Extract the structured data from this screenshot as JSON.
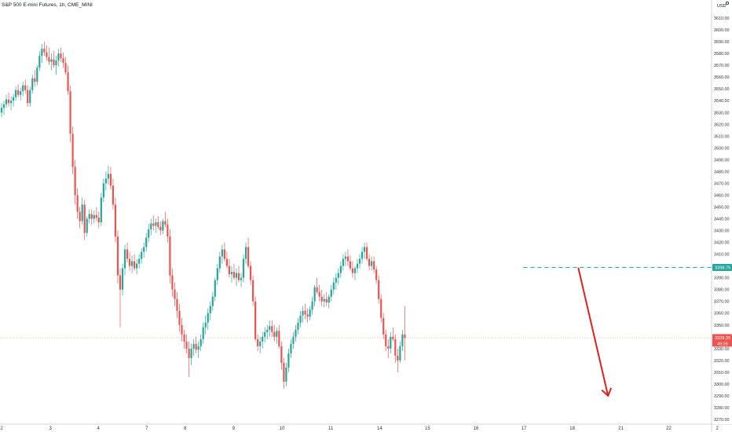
{
  "header": {
    "symbol": "S&P 500 E-mini Futures, 1h, CME_MINI",
    "currency": "USD"
  },
  "colors": {
    "up": "#26a69a",
    "down": "#ef5350",
    "level": "#26a69a",
    "arrow": "#e0201e",
    "current": "#ef5350",
    "text": "#131722",
    "axis_text": "#333333",
    "border": "#d1d4dc"
  },
  "icons": {
    "header_icon": "gear-icon"
  },
  "chart_data": {
    "type": "candlestick",
    "title": "S&P 500 E-mini Futures, 1h, CME_MINI",
    "ylim": [
      3266,
      3622
    ],
    "y_ticks": [
      3270,
      3280,
      3290,
      3300,
      3310,
      3320,
      3330,
      3340,
      3350,
      3360,
      3370,
      3380,
      3390,
      3400,
      3410,
      3420,
      3430,
      3440,
      3450,
      3460,
      3470,
      3480,
      3490,
      3500,
      3510,
      3520,
      3530,
      3540,
      3550,
      3560,
      3570,
      3580,
      3590,
      3600,
      3610
    ],
    "y_tick_labels": [
      "3270.00",
      "3280.00",
      "3290.00",
      "3300.00",
      "3310.00",
      "3320.00",
      "3330.00",
      "3340.00",
      "3350.00",
      "3360.00",
      "3370.00",
      "3380.00",
      "3390.00",
      "3400.00",
      "3410.00",
      "3420.00",
      "3430.00",
      "3440.00",
      "3450.00",
      "3460.00",
      "3470.00",
      "3480.00",
      "3490.00",
      "3500.00",
      "3510.00",
      "3520.00",
      "3530.00",
      "3540.00",
      "3550.00",
      "3560.00",
      "3570.00",
      "3580.00",
      "3590.00",
      "3600.00",
      "3610.00"
    ],
    "x_ticks": [
      "2",
      "3",
      "4",
      "7",
      "8",
      "9",
      "10",
      "11",
      "14",
      "15",
      "16",
      "17",
      "18",
      "21",
      "22",
      "2"
    ],
    "x_tick_bars": [
      0,
      20.6,
      40.8,
      61.2,
      77.4,
      97.8,
      118.2,
      138.8,
      159.4,
      179.6,
      200,
      220.2,
      240.6,
      261.1,
      281.3,
      301.7
    ],
    "level": {
      "value": 3398.75,
      "label": "3398.75",
      "start_bar": 220
    },
    "current": {
      "value": 3339.25,
      "label": "3339.25",
      "countdown": "49:26"
    },
    "projection": {
      "from": {
        "bar": 243.2,
        "price": 3398
      },
      "to": {
        "bar": 255.7,
        "price": 3290
      }
    },
    "candles": [
      [
        3530,
        3538,
        3526,
        3534
      ],
      [
        3534,
        3540,
        3528,
        3537
      ],
      [
        3537,
        3545,
        3534,
        3541
      ],
      [
        3541,
        3547,
        3535,
        3538
      ],
      [
        3538,
        3544,
        3532,
        3540
      ],
      [
        3540,
        3546,
        3535,
        3543
      ],
      [
        3543,
        3552,
        3540,
        3549
      ],
      [
        3549,
        3554,
        3543,
        3545
      ],
      [
        3545,
        3551,
        3540,
        3548
      ],
      [
        3548,
        3556,
        3544,
        3553
      ],
      [
        3553,
        3558,
        3546,
        3549
      ],
      [
        3549,
        3553,
        3535,
        3538
      ],
      [
        3538,
        3552,
        3535,
        3549
      ],
      [
        3549,
        3562,
        3546,
        3559
      ],
      [
        3559,
        3566,
        3552,
        3556
      ],
      [
        3556,
        3570,
        3553,
        3568
      ],
      [
        3568,
        3582,
        3565,
        3578
      ],
      [
        3578,
        3588,
        3572,
        3584
      ],
      [
        3584,
        3590,
        3578,
        3581
      ],
      [
        3581,
        3587,
        3574,
        3577
      ],
      [
        3577,
        3585,
        3570,
        3573
      ],
      [
        3573,
        3580,
        3566,
        3575
      ],
      [
        3575,
        3582,
        3568,
        3570
      ],
      [
        3570,
        3578,
        3562,
        3574
      ],
      [
        3574,
        3584,
        3569,
        3580
      ],
      [
        3580,
        3585,
        3573,
        3576
      ],
      [
        3576,
        3581,
        3568,
        3572
      ],
      [
        3572,
        3577,
        3562,
        3564
      ],
      [
        3564,
        3570,
        3545,
        3548
      ],
      [
        3548,
        3553,
        3505,
        3512
      ],
      [
        3512,
        3518,
        3478,
        3484
      ],
      [
        3484,
        3490,
        3452,
        3460
      ],
      [
        3460,
        3466,
        3440,
        3446
      ],
      [
        3446,
        3450,
        3432,
        3438
      ],
      [
        3438,
        3458,
        3435,
        3452
      ],
      [
        3452,
        3456,
        3422,
        3428
      ],
      [
        3428,
        3442,
        3425,
        3440
      ],
      [
        3440,
        3448,
        3436,
        3444
      ],
      [
        3444,
        3448,
        3435,
        3440
      ],
      [
        3440,
        3447,
        3436,
        3443
      ],
      [
        3443,
        3450,
        3438,
        3441
      ],
      [
        3441,
        3446,
        3432,
        3437
      ],
      [
        3437,
        3462,
        3434,
        3458
      ],
      [
        3458,
        3474,
        3454,
        3470
      ],
      [
        3470,
        3480,
        3464,
        3474
      ],
      [
        3474,
        3485,
        3469,
        3478
      ],
      [
        3478,
        3484,
        3465,
        3468
      ],
      [
        3468,
        3474,
        3448,
        3452
      ],
      [
        3452,
        3458,
        3420,
        3425
      ],
      [
        3425,
        3430,
        3385,
        3392
      ],
      [
        3392,
        3398,
        3348,
        3380
      ],
      [
        3380,
        3402,
        3375,
        3398
      ],
      [
        3398,
        3418,
        3392,
        3414
      ],
      [
        3414,
        3420,
        3403,
        3406
      ],
      [
        3406,
        3412,
        3396,
        3400
      ],
      [
        3400,
        3409,
        3394,
        3404
      ],
      [
        3404,
        3410,
        3396,
        3398
      ],
      [
        3398,
        3406,
        3393,
        3402
      ],
      [
        3402,
        3410,
        3398,
        3406
      ],
      [
        3406,
        3415,
        3402,
        3412
      ],
      [
        3412,
        3420,
        3407,
        3416
      ],
      [
        3416,
        3428,
        3412,
        3424
      ],
      [
        3424,
        3436,
        3420,
        3431
      ],
      [
        3431,
        3440,
        3426,
        3436
      ],
      [
        3436,
        3443,
        3430,
        3434
      ],
      [
        3434,
        3440,
        3428,
        3437
      ],
      [
        3437,
        3442,
        3431,
        3433
      ],
      [
        3433,
        3438,
        3426,
        3430
      ],
      [
        3430,
        3440,
        3427,
        3438
      ],
      [
        3438,
        3446,
        3433,
        3435
      ],
      [
        3435,
        3440,
        3420,
        3425
      ],
      [
        3425,
        3431,
        3385,
        3392
      ],
      [
        3392,
        3398,
        3374,
        3380
      ],
      [
        3380,
        3386,
        3366,
        3372
      ],
      [
        3372,
        3378,
        3356,
        3362
      ],
      [
        3362,
        3368,
        3344,
        3350
      ],
      [
        3350,
        3356,
        3336,
        3342
      ],
      [
        3342,
        3346,
        3330,
        3336
      ],
      [
        3336,
        3342,
        3326,
        3330
      ],
      [
        3330,
        3336,
        3306,
        3322
      ],
      [
        3322,
        3334,
        3316,
        3330
      ],
      [
        3330,
        3338,
        3324,
        3334
      ],
      [
        3334,
        3340,
        3326,
        3329
      ],
      [
        3329,
        3336,
        3322,
        3332
      ],
      [
        3332,
        3342,
        3328,
        3338
      ],
      [
        3338,
        3352,
        3334,
        3348
      ],
      [
        3348,
        3358,
        3342,
        3352
      ],
      [
        3352,
        3364,
        3346,
        3360
      ],
      [
        3360,
        3370,
        3354,
        3366
      ],
      [
        3366,
        3378,
        3362,
        3374
      ],
      [
        3374,
        3390,
        3370,
        3388
      ],
      [
        3388,
        3402,
        3384,
        3398
      ],
      [
        3398,
        3412,
        3394,
        3408
      ],
      [
        3408,
        3418,
        3402,
        3414
      ],
      [
        3414,
        3420,
        3404,
        3406
      ],
      [
        3406,
        3412,
        3398,
        3400
      ],
      [
        3400,
        3406,
        3390,
        3393
      ],
      [
        3393,
        3400,
        3386,
        3395
      ],
      [
        3395,
        3402,
        3388,
        3390
      ],
      [
        3390,
        3398,
        3383,
        3394
      ],
      [
        3394,
        3400,
        3386,
        3388
      ],
      [
        3388,
        3394,
        3382,
        3390
      ],
      [
        3390,
        3410,
        3386,
        3406
      ],
      [
        3406,
        3420,
        3402,
        3416
      ],
      [
        3416,
        3424,
        3398,
        3400
      ],
      [
        3400,
        3404,
        3384,
        3388
      ],
      [
        3388,
        3392,
        3366,
        3370
      ],
      [
        3370,
        3374,
        3336,
        3338
      ],
      [
        3338,
        3342,
        3328,
        3332
      ],
      [
        3332,
        3340,
        3326,
        3336
      ],
      [
        3336,
        3344,
        3330,
        3340
      ],
      [
        3340,
        3348,
        3335,
        3344
      ],
      [
        3344,
        3350,
        3338,
        3346
      ],
      [
        3346,
        3354,
        3340,
        3349
      ],
      [
        3349,
        3354,
        3340,
        3344
      ],
      [
        3344,
        3350,
        3336,
        3340
      ],
      [
        3340,
        3348,
        3334,
        3345
      ],
      [
        3345,
        3350,
        3330,
        3332
      ],
      [
        3332,
        3336,
        3312,
        3318
      ],
      [
        3318,
        3322,
        3296,
        3302
      ],
      [
        3302,
        3318,
        3298,
        3314
      ],
      [
        3314,
        3330,
        3310,
        3326
      ],
      [
        3326,
        3338,
        3322,
        3334
      ],
      [
        3334,
        3344,
        3330,
        3340
      ],
      [
        3340,
        3350,
        3336,
        3346
      ],
      [
        3346,
        3356,
        3342,
        3352
      ],
      [
        3352,
        3362,
        3348,
        3358
      ],
      [
        3358,
        3366,
        3352,
        3362
      ],
      [
        3362,
        3368,
        3355,
        3359
      ],
      [
        3359,
        3364,
        3352,
        3357
      ],
      [
        3357,
        3366,
        3354,
        3363
      ],
      [
        3363,
        3374,
        3359,
        3370
      ],
      [
        3370,
        3384,
        3366,
        3382
      ],
      [
        3382,
        3390,
        3376,
        3378
      ],
      [
        3378,
        3384,
        3370,
        3374
      ],
      [
        3374,
        3380,
        3366,
        3370
      ],
      [
        3370,
        3376,
        3365,
        3372
      ],
      [
        3372,
        3378,
        3366,
        3369
      ],
      [
        3369,
        3376,
        3364,
        3374
      ],
      [
        3374,
        3384,
        3370,
        3380
      ],
      [
        3380,
        3390,
        3376,
        3386
      ],
      [
        3386,
        3394,
        3380,
        3390
      ],
      [
        3390,
        3398,
        3384,
        3394
      ],
      [
        3394,
        3404,
        3390,
        3400
      ],
      [
        3400,
        3410,
        3396,
        3406
      ],
      [
        3406,
        3412,
        3400,
        3408
      ],
      [
        3408,
        3414,
        3400,
        3404
      ],
      [
        3404,
        3409,
        3396,
        3398
      ],
      [
        3398,
        3404,
        3390,
        3394
      ],
      [
        3394,
        3400,
        3388,
        3398
      ],
      [
        3398,
        3406,
        3394,
        3402
      ],
      [
        3402,
        3410,
        3398,
        3406
      ],
      [
        3406,
        3416,
        3402,
        3412
      ],
      [
        3412,
        3420,
        3406,
        3416
      ],
      [
        3416,
        3420,
        3404,
        3406
      ],
      [
        3406,
        3410,
        3396,
        3400
      ],
      [
        3400,
        3408,
        3396,
        3404
      ],
      [
        3404,
        3408,
        3394,
        3397
      ],
      [
        3397,
        3400,
        3385,
        3388
      ],
      [
        3388,
        3392,
        3368,
        3372
      ],
      [
        3372,
        3376,
        3352,
        3356
      ],
      [
        3356,
        3360,
        3338,
        3342
      ],
      [
        3342,
        3346,
        3328,
        3332
      ],
      [
        3332,
        3338,
        3322,
        3330
      ],
      [
        3330,
        3344,
        3326,
        3340
      ],
      [
        3340,
        3348,
        3336,
        3338
      ],
      [
        3338,
        3342,
        3318,
        3324
      ],
      [
        3324,
        3330,
        3310,
        3320
      ],
      [
        3320,
        3336,
        3318,
        3332
      ],
      [
        3332,
        3346,
        3328,
        3342
      ],
      [
        3342,
        3366,
        3320,
        3339
      ]
    ]
  }
}
